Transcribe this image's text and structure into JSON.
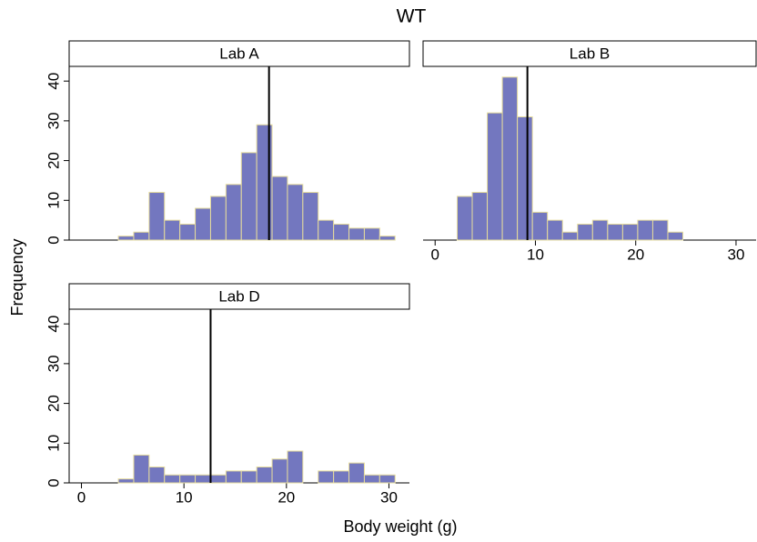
{
  "chart_data": {
    "type": "histogram",
    "title": "WT",
    "xlabel": "Body weight (g)",
    "ylabel": "Frequency",
    "color": "#7377bf",
    "edge_color": "#e6dc9c",
    "xlim": [
      -1.2,
      32
    ],
    "ylim": [
      0,
      43.7
    ],
    "xticks": [
      0,
      10,
      20,
      30
    ],
    "yticks": [
      0,
      10,
      20,
      30,
      40
    ],
    "panels": [
      {
        "title": "Lab A",
        "x_axis": false,
        "bins": [
          3.6,
          5.1,
          6.6,
          8.1,
          9.6,
          11.1,
          12.6,
          14.1,
          15.6,
          17.1,
          18.6,
          20.1,
          21.6,
          23.1,
          24.6,
          26.1,
          27.6,
          29.1,
          30.6
        ],
        "values": [
          1,
          2,
          12,
          5,
          4,
          8,
          11,
          14,
          22,
          29,
          16,
          14,
          12,
          5,
          4,
          3,
          3,
          1
        ],
        "reference_line": 18.3
      },
      {
        "title": "Lab B",
        "x_axis": true,
        "bins": [
          2.2,
          3.7,
          5.2,
          6.7,
          8.2,
          9.7,
          11.2,
          12.7,
          14.2,
          15.7,
          17.2,
          18.7,
          20.2,
          21.7,
          23.2,
          24.7
        ],
        "values": [
          11,
          12,
          32,
          41,
          31,
          7,
          5,
          2,
          4,
          5,
          4,
          4,
          5,
          5,
          2
        ],
        "reference_line": 9.2
      },
      {
        "title": "Lab D",
        "x_axis": true,
        "bins": [
          3.6,
          5.1,
          6.6,
          8.1,
          9.6,
          11.1,
          12.6,
          14.1,
          15.6,
          17.1,
          18.6,
          20.1,
          21.6,
          23.1,
          24.6,
          26.1,
          27.6,
          29.1,
          30.6
        ],
        "values": [
          1,
          7,
          4,
          2,
          2,
          2,
          2,
          3,
          3,
          4,
          6,
          8,
          0,
          3,
          3,
          5,
          2,
          2
        ],
        "reference_line": 12.6
      }
    ]
  }
}
